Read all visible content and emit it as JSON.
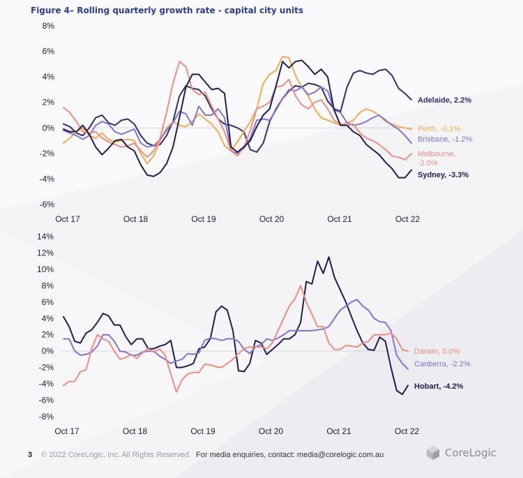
{
  "figure_title": "Figure 4– Rolling quarterly growth rate - capital city units",
  "footer": {
    "page_number": "3",
    "copyright": "© 2022 CoreLogic, Inc. All Rights Reserved.",
    "media": "For media enquiries, contact: media@corelogic.com.au"
  },
  "brand": {
    "name": "CoreLogic",
    "icon": "corelogic-logo-icon"
  },
  "colors": {
    "tick": "#1a1a2e",
    "zero_line": "#d5d5de"
  },
  "chart_data": [
    {
      "type": "line",
      "title": "",
      "xlabel": "",
      "ylabel": "",
      "x_ticks": [
        "Oct 17",
        "Oct 18",
        "Oct 19",
        "Oct 20",
        "Oct 21",
        "Oct 22"
      ],
      "x_range": [
        "Oct 17",
        "Nov 22"
      ],
      "ylim": [
        -6,
        8
      ],
      "y_ticks": [
        "8%",
        "6%",
        "4%",
        "2%",
        "0%",
        "-2%",
        "-4%",
        "-6%"
      ],
      "grid": false,
      "series": [
        {
          "name": "Adelaide, 2.2%",
          "color": "#2c2f6b",
          "values": [
            0.3,
            0.1,
            -0.4,
            -0.6,
            0,
            0.8,
            1,
            0.4,
            0.2,
            0.6,
            0.7,
            0.3,
            -0.6,
            -1.2,
            -1.4,
            -1.3,
            -0.6,
            0.5,
            2.5,
            3.3,
            3.1,
            3,
            2.5,
            1.5,
            0.7,
            0.3,
            0.2,
            0,
            -0.3,
            -1.7,
            -1.9,
            -1.2,
            0.5,
            1.5,
            2.3,
            2.9,
            3.3,
            3.2,
            3.5,
            3.4,
            3.2,
            2.1,
            1.5,
            1.3,
            3.2,
            4.3,
            4.5,
            4.3,
            4.2,
            4.5,
            4.6,
            4.1,
            3.1,
            2.7,
            2.2
          ]
        },
        {
          "name": "Perth, -0.1%",
          "color": "#f3a94e",
          "values": [
            -1.2,
            -0.8,
            -0.3,
            0,
            -0.6,
            -0.8,
            -0.4,
            -0.9,
            -1.1,
            -1,
            -0.9,
            -1,
            -2,
            -2.8,
            -2.2,
            -1,
            0,
            0.5,
            0.2,
            0.1,
            0.5,
            1.1,
            0.7,
            0.3,
            -0.3,
            -1.4,
            -1.8,
            -1.1,
            -0.3,
            0.5,
            1.5,
            3.5,
            4.2,
            4.5,
            5.6,
            5.5,
            4.1,
            3.2,
            2.5,
            1.5,
            0.8,
            0.6,
            0.4,
            0.2,
            0.4,
            0.6,
            1.2,
            1.5,
            1.3,
            1,
            0.5,
            0.3,
            0.1,
            0,
            -0.1
          ]
        },
        {
          "name": "Brisbane, -1.2%",
          "color": "#8073d6",
          "values": [
            -0.2,
            -0.4,
            -0.6,
            -0.9,
            -0.6,
            0.2,
            0.5,
            0.3,
            -0.3,
            -0.5,
            -0.3,
            -0.1,
            -1.2,
            -1.5,
            -1.4,
            -0.9,
            -0.2,
            0.4,
            1.3,
            1.1,
            0.2,
            1.7,
            1,
            1,
            1.5,
            0.8,
            -1.8,
            -2,
            -1.6,
            -0.8,
            0.6,
            0.7,
            0.6,
            1.4,
            2.3,
            3,
            2.9,
            3.2,
            2.6,
            2.8,
            3.2,
            2.9,
            1.4,
            1.2,
            0.4,
            0.2,
            0.3,
            0.5,
            0.8,
            1,
            0.6,
            0.2,
            -0.1,
            -0.6,
            -1.2
          ]
        },
        {
          "name": "Melbourne, -2.0%",
          "color": "#ee8c80",
          "values": [
            1.6,
            1.2,
            0.5,
            -0.3,
            -0.4,
            -0.3,
            -0.8,
            -1.1,
            -1.3,
            -1.5,
            -1.4,
            -1.2,
            -1.8,
            -2.3,
            -1.8,
            -0.8,
            1.2,
            3.5,
            5.2,
            4.8,
            3,
            2.6,
            2.8,
            1.7,
            0.7,
            -0.3,
            -1.8,
            -2.2,
            -1.5,
            -0.2,
            1.5,
            1.7,
            2,
            3.2,
            3.3,
            3.8,
            2.5,
            1.8,
            1.5,
            2,
            2.2,
            1.5,
            0.6,
            0.3,
            0.2,
            0.3,
            -0.4,
            -0.8,
            -1,
            -1.3,
            -1.7,
            -2.2,
            -2.3,
            -2.5,
            -2.0
          ]
        },
        {
          "name": "Sydney, -3.3%",
          "color": "#1d1c4a",
          "values": [
            -0.1,
            -0.3,
            -0.3,
            0.2,
            -0.5,
            -1.5,
            -2.1,
            -1.6,
            -1,
            -0.9,
            -1.5,
            -1.8,
            -2.9,
            -3.7,
            -3.8,
            -3.5,
            -2.8,
            -1.5,
            0.8,
            3.2,
            4.2,
            4.2,
            3.6,
            3,
            3.1,
            2.7,
            -1.5,
            -1.9,
            -1.5,
            -1,
            0.1,
            1,
            1.5,
            3.3,
            5.2,
            4.7,
            5.2,
            5.3,
            4.8,
            4.2,
            4.6,
            4,
            1.4,
            0.2,
            0.2,
            -0.3,
            -0.6,
            -1.3,
            -1.7,
            -2.1,
            -2.7,
            -3.2,
            -3.9,
            -3.9,
            -3.3
          ]
        }
      ]
    },
    {
      "type": "line",
      "title": "",
      "xlabel": "",
      "ylabel": "",
      "x_ticks": [
        "Oct 17",
        "Oct 18",
        "Oct 19",
        "Oct 20",
        "Oct 21",
        "Oct 22"
      ],
      "x_range": [
        "Oct 17",
        "Nov 22"
      ],
      "ylim": [
        -8,
        14
      ],
      "y_ticks": [
        "14%",
        "12%",
        "10%",
        "8%",
        "6%",
        "4%",
        "2%",
        "0%",
        "-2%",
        "-4%",
        "-6%",
        "-8%"
      ],
      "grid": false,
      "series": [
        {
          "name": "Hobart, -4.2%",
          "color": "#1d1c4a",
          "values": [
            4.2,
            3,
            1.2,
            1,
            2.2,
            2.6,
            3.5,
            4.6,
            4.3,
            3.2,
            3.2,
            1.8,
            0.8,
            1.5,
            1.5,
            0.3,
            0.3,
            0.6,
            0.8,
            1.3,
            -2,
            -2,
            -1.8,
            -1.5,
            0.3,
            0.5,
            1.5,
            4.8,
            5.5,
            5,
            2.5,
            -2.4,
            -2.5,
            -1.5,
            1.3,
            1,
            -0.4,
            0.2,
            0.8,
            1.5,
            1.5,
            2,
            3.5,
            8.5,
            8.2,
            11,
            9.5,
            11.5,
            9,
            7.5,
            6,
            4.2,
            2.5,
            1,
            0.2,
            0.1,
            1.7,
            1.2,
            -2,
            -4.8,
            -5.3,
            -4.2
          ]
        },
        {
          "name": "Canberra, -2.2%",
          "color": "#8073d6",
          "values": [
            1.5,
            1.5,
            0,
            -0.5,
            -0.4,
            -0.1,
            0.6,
            2,
            2,
            1.2,
            0,
            -0.1,
            -0.5,
            -0.5,
            -0.1,
            0,
            0,
            -0.6,
            -1,
            -1.5,
            -1.2,
            -1,
            -0.3,
            -0.4,
            -0.2,
            1.3,
            1.6,
            1.5,
            1.3,
            1.5,
            1.5,
            1.2,
            0.2,
            -0.3,
            0.5,
            0.8,
            1.5,
            1.3,
            1.6,
            2,
            2.5,
            2.5,
            2.5,
            2.5,
            2.5,
            2.6,
            2.7,
            3,
            4,
            5,
            5.5,
            6,
            6.3,
            5.5,
            5,
            4,
            3.6,
            3.5,
            2.5,
            -0.5,
            -1.5,
            -2.2
          ]
        },
        {
          "name": "Darwin, 0.0%",
          "color": "#ee8c80",
          "values": [
            -4.2,
            -3.7,
            -3.7,
            -2.5,
            -2.3,
            0.3,
            2,
            1.5,
            1.2,
            0,
            -1,
            -0.8,
            -0.4,
            -0.9,
            -0.2,
            0.3,
            -0.1,
            0.3,
            -0.5,
            -2.8,
            -5,
            -3.5,
            -2.8,
            -2.6,
            -2.6,
            -1.6,
            -1.7,
            -1.9,
            -2,
            -1.5,
            -1,
            -0.3,
            0.3,
            0.5,
            0.5,
            0.5,
            0.3,
            1,
            2.5,
            4,
            5.5,
            6.4,
            8,
            6,
            4.5,
            3,
            3,
            1,
            0.2,
            0.2,
            0.7,
            0.6,
            0.5,
            1,
            1.2,
            2,
            2,
            2,
            2.2,
            1.5,
            0.2,
            0.0
          ]
        }
      ]
    }
  ]
}
